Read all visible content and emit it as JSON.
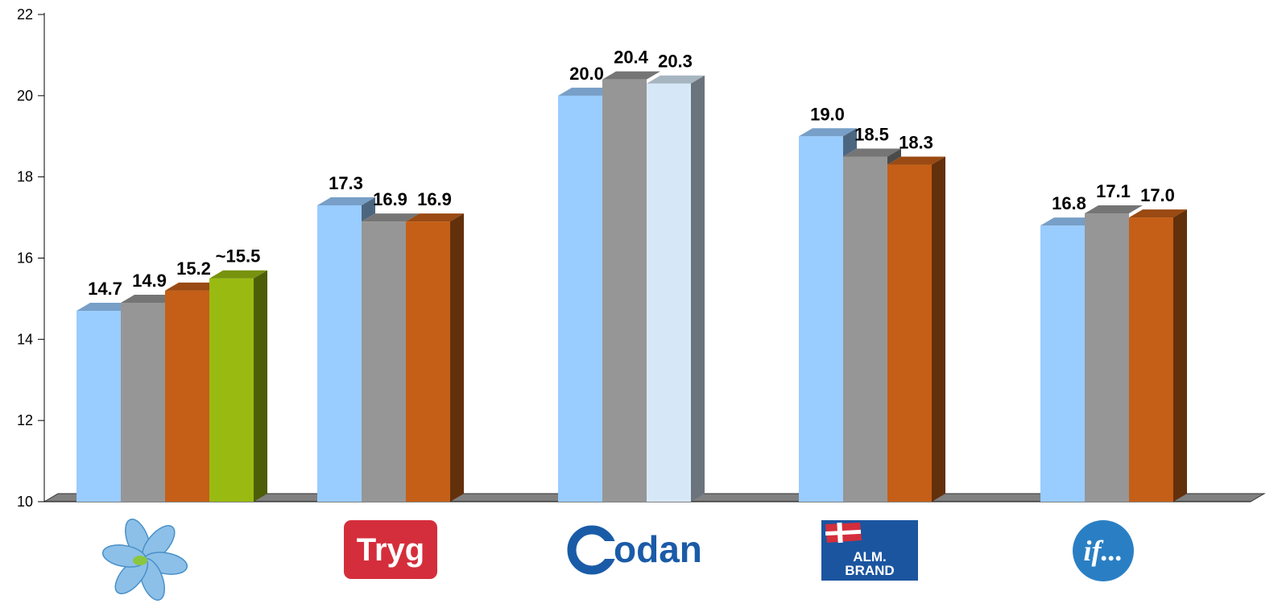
{
  "chart_data": {
    "type": "bar",
    "title": "",
    "xlabel": "",
    "ylabel": "",
    "ylim": [
      10,
      22
    ],
    "yticks": [
      10,
      12,
      14,
      16,
      18,
      20,
      22
    ],
    "grid": false,
    "three_d": true,
    "groups": [
      {
        "logo": "flower-logo",
        "bars": [
          {
            "value": 14.7,
            "label": "14.7",
            "color": "#99ccff"
          },
          {
            "value": 14.9,
            "label": "14.9",
            "color": "#969696"
          },
          {
            "value": 15.2,
            "label": "15.2",
            "color": "#c55f17"
          },
          {
            "value": 15.5,
            "label": "~15.5",
            "color": "#99bb11"
          }
        ]
      },
      {
        "logo": "tryg-logo",
        "logo_text": "Tryg",
        "bars": [
          {
            "value": 17.3,
            "label": "17.3",
            "color": "#99ccff"
          },
          {
            "value": 16.9,
            "label": "16.9",
            "color": "#969696"
          },
          {
            "value": 16.9,
            "label": "16.9",
            "color": "#c55f17"
          }
        ]
      },
      {
        "logo": "codan-logo",
        "logo_text": "odan",
        "bars": [
          {
            "value": 20.0,
            "label": "20.0",
            "color": "#99ccff"
          },
          {
            "value": 20.4,
            "label": "20.4",
            "color": "#969696"
          },
          {
            "value": 20.3,
            "label": "20.3",
            "color": "#d6e8f8"
          }
        ]
      },
      {
        "logo": "alm-brand-logo",
        "logo_text_1": "ALM.",
        "logo_text_2": "BRAND",
        "bars": [
          {
            "value": 19.0,
            "label": "19.0",
            "color": "#99ccff"
          },
          {
            "value": 18.5,
            "label": "18.5",
            "color": "#969696"
          },
          {
            "value": 18.3,
            "label": "18.3",
            "color": "#c55f17"
          }
        ]
      },
      {
        "logo": "if-logo",
        "logo_text": "if...",
        "bars": [
          {
            "value": 16.8,
            "label": "16.8",
            "color": "#99ccff"
          },
          {
            "value": 17.1,
            "label": "17.1",
            "color": "#969696"
          },
          {
            "value": 17.0,
            "label": "17.0",
            "color": "#c55f17"
          }
        ]
      }
    ]
  }
}
